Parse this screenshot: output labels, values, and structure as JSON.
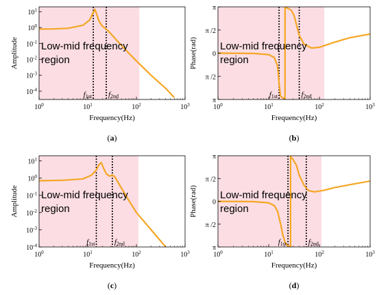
{
  "colors": {
    "curve": "#f5a623",
    "region_fill": "#fbdde3",
    "axis": "#000000",
    "marker_line": "#000000"
  },
  "chart_data": [
    {
      "id": "a",
      "type": "line",
      "panel_label": "a",
      "region_text": [
        "Low-mid  frequency",
        "region"
      ],
      "xlabel": "Frequency(Hz)",
      "ylabel": "Amplitude",
      "xscale": "log",
      "yscale": "log",
      "xlim": [
        1,
        1000
      ],
      "ylim": [
        3e-05,
        20
      ],
      "xticks": [
        1,
        10,
        100,
        1000
      ],
      "xtick_labels": [
        [
          "10",
          "0"
        ],
        [
          "10",
          "1"
        ],
        [
          "10",
          "2"
        ],
        [
          "10",
          "3"
        ]
      ],
      "yticks": [
        10,
        1,
        0.1,
        0.01,
        0.001,
        0.0001
      ],
      "ytick_labels": [
        [
          "10",
          "1"
        ],
        [
          "10",
          "0"
        ],
        [
          "10",
          "-1"
        ],
        [
          "10",
          "-2"
        ],
        [
          "10",
          "-3"
        ],
        [
          "10",
          "-4"
        ]
      ],
      "region": [
        1,
        115
      ],
      "markers": [
        {
          "x": 13,
          "label": "f",
          "sub": "1st"
        },
        {
          "x": 24,
          "label": "f",
          "sub": "2nd"
        }
      ],
      "series": [
        {
          "x": [
            1,
            2,
            4,
            8,
            11,
            13,
            14,
            15,
            17,
            20,
            24,
            30,
            40,
            60,
            100,
            200,
            400,
            600
          ],
          "y": [
            0.8,
            0.82,
            0.9,
            1.4,
            3,
            9,
            14,
            8,
            2.5,
            1.2,
            0.8,
            0.4,
            0.15,
            0.04,
            0.008,
            0.001,
            0.00015,
            4e-05
          ]
        }
      ]
    },
    {
      "id": "b",
      "type": "line",
      "panel_label": "b",
      "region_text": [
        "Low-mid  frequency",
        "region"
      ],
      "xlabel": "Frequency(Hz)",
      "ylabel": "Phase(rad)",
      "xscale": "log",
      "yscale": "linear",
      "xlim": [
        1,
        1000
      ],
      "ylim": [
        -3.1416,
        3.1416
      ],
      "xticks": [
        1,
        10,
        100,
        1000
      ],
      "xtick_labels": [
        [
          "10",
          "0"
        ],
        [
          "10",
          "1"
        ],
        [
          "10",
          "2"
        ],
        [
          "10",
          "3"
        ]
      ],
      "yticks": [
        3.1416,
        1.5708,
        0,
        -1.5708,
        -3.1416
      ],
      "ytick_labels": [
        [
          "π",
          ""
        ],
        [
          "π /2",
          ""
        ],
        [
          "0",
          ""
        ],
        [
          "π /2",
          ""
        ],
        [
          "π",
          ""
        ]
      ],
      "region": [
        1,
        125
      ],
      "markers": [
        {
          "x": 16,
          "label": "f",
          "sub": "1st"
        },
        {
          "x": 40,
          "label": "f",
          "sub": "2nd"
        }
      ],
      "series": [
        {
          "x": [
            1,
            5,
            10,
            13,
            15,
            16,
            17,
            19,
            21,
            21.01,
            24,
            28,
            32,
            36,
            40,
            50,
            70,
            100,
            200,
            400,
            1000
          ],
          "y": [
            0,
            -0.02,
            -0.1,
            -0.3,
            -0.9,
            -2.0,
            -2.9,
            -3.05,
            -3.1,
            3.1,
            3.05,
            2.9,
            2.5,
            1.8,
            1.2,
            0.6,
            0.35,
            0.4,
            0.75,
            1.05,
            1.3
          ]
        }
      ]
    },
    {
      "id": "c",
      "type": "line",
      "panel_label": "c",
      "region_text": [
        "Low-mid  frequency",
        "region"
      ],
      "xlabel": "Frequency(Hz)",
      "ylabel": "Amplitude",
      "xscale": "log",
      "yscale": "log",
      "xlim": [
        1,
        1000
      ],
      "ylim": [
        0.0001,
        20
      ],
      "xticks": [
        1,
        10,
        100,
        1000
      ],
      "xtick_labels": [
        [
          "10",
          "0"
        ],
        [
          "10",
          "1"
        ],
        [
          "10",
          "2"
        ],
        [
          "10",
          "3"
        ]
      ],
      "yticks": [
        10,
        1,
        0.1,
        0.01,
        0.001,
        0.0001
      ],
      "ytick_labels": [
        [
          "10",
          "1"
        ],
        [
          "10",
          "0"
        ],
        [
          "10",
          "-1"
        ],
        [
          "10",
          "-2"
        ],
        [
          "10",
          "-3"
        ],
        [
          "10",
          "-4"
        ]
      ],
      "region": [
        1,
        110
      ],
      "markers": [
        {
          "x": 15,
          "label": "f",
          "sub": "1st"
        },
        {
          "x": 32,
          "label": "f",
          "sub": "2nd"
        }
      ],
      "series": [
        {
          "x": [
            1,
            3,
            8,
            12,
            15,
            17,
            19,
            21,
            24,
            28,
            32,
            36,
            45,
            70,
            100,
            200,
            400
          ],
          "y": [
            0.7,
            0.75,
            0.9,
            1.5,
            3,
            6,
            8,
            4,
            1.8,
            1.3,
            1.5,
            1.2,
            0.4,
            0.05,
            0.01,
            0.001,
            0.0001
          ]
        }
      ]
    },
    {
      "id": "d",
      "type": "line",
      "panel_label": "d",
      "region_text": [
        "Low-mid  frequency",
        "region"
      ],
      "xlabel": "Frequency(Hz)",
      "ylabel": "Phase(rad)",
      "xscale": "log",
      "yscale": "linear",
      "xlim": [
        1,
        1000
      ],
      "ylim": [
        -3.1416,
        3.1416
      ],
      "xticks": [
        1,
        10,
        100,
        1000
      ],
      "xtick_labels": [
        [
          "10",
          "0"
        ],
        [
          "10",
          "1"
        ],
        [
          "10",
          "2"
        ],
        [
          "10",
          "3"
        ]
      ],
      "yticks": [
        3.1416,
        1.5708,
        0,
        -1.5708,
        -3.1416
      ],
      "ytick_labels": [
        [
          "π",
          ""
        ],
        [
          "π /2",
          ""
        ],
        [
          "0",
          ""
        ],
        [
          "π /2",
          ""
        ],
        [
          "π",
          ""
        ]
      ],
      "region": [
        1,
        110
      ],
      "markers": [
        {
          "x": 24,
          "label": "f",
          "sub": "1st"
        },
        {
          "x": 55,
          "label": "f",
          "sub": "2nd"
        }
      ],
      "series": [
        {
          "x": [
            1,
            5,
            10,
            13,
            15,
            17,
            19,
            21,
            23,
            25,
            27,
            27.01,
            30,
            35,
            40,
            50,
            60,
            80,
            120,
            200,
            400,
            1000
          ],
          "y": [
            0,
            -0.02,
            -0.1,
            -0.3,
            -0.7,
            -1.5,
            -2.3,
            -2.8,
            -3.0,
            -3.08,
            -3.12,
            3.1,
            2.9,
            2.5,
            1.8,
            1.1,
            0.75,
            0.65,
            0.75,
            0.95,
            1.15,
            1.4
          ]
        }
      ]
    }
  ]
}
